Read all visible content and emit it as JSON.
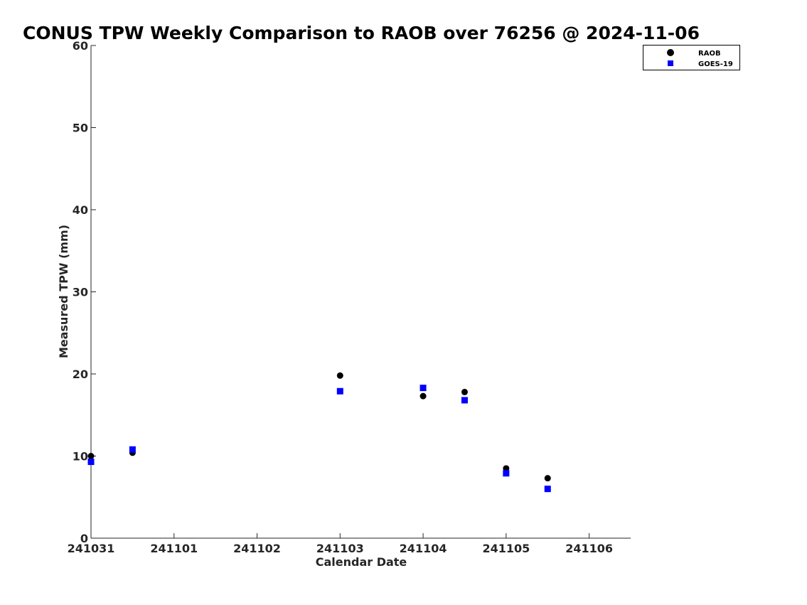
{
  "chart_data": {
    "type": "scatter",
    "title": "CONUS TPW Weekly Comparison to RAOB over 76256 @ 2024-11-06",
    "xlabel": "Calendar Date",
    "ylabel": "Measured TPW (mm)",
    "x_tick_labels": [
      "241031",
      "241101",
      "241102",
      "241103",
      "241104",
      "241105",
      "241106"
    ],
    "y_ticks": [
      0,
      10,
      20,
      30,
      40,
      50,
      60
    ],
    "xlim": [
      "2024-10-31T00:00",
      "2024-11-06T12:00"
    ],
    "ylim": [
      0,
      60
    ],
    "grid": false,
    "legend_position": "top-right",
    "series": [
      {
        "name": "RAOB",
        "marker": "circle",
        "color": "#000000",
        "points": [
          {
            "x": "2024-10-31T00:00",
            "y": 10.0
          },
          {
            "x": "2024-10-31T12:00",
            "y": 10.4
          },
          {
            "x": "2024-11-03T00:00",
            "y": 19.8
          },
          {
            "x": "2024-11-04T00:00",
            "y": 17.3
          },
          {
            "x": "2024-11-04T12:00",
            "y": 17.8
          },
          {
            "x": "2024-11-05T00:00",
            "y": 8.5
          },
          {
            "x": "2024-11-05T12:00",
            "y": 7.3
          }
        ]
      },
      {
        "name": "GOES-19",
        "marker": "square",
        "color": "#0000ff",
        "points": [
          {
            "x": "2024-10-31T00:00",
            "y": 9.3
          },
          {
            "x": "2024-10-31T12:00",
            "y": 10.8
          },
          {
            "x": "2024-11-03T00:00",
            "y": 17.9
          },
          {
            "x": "2024-11-04T00:00",
            "y": 18.3
          },
          {
            "x": "2024-11-04T12:00",
            "y": 16.8
          },
          {
            "x": "2024-11-05T00:00",
            "y": 7.9
          },
          {
            "x": "2024-11-05T12:00",
            "y": 6.0
          }
        ]
      }
    ]
  }
}
